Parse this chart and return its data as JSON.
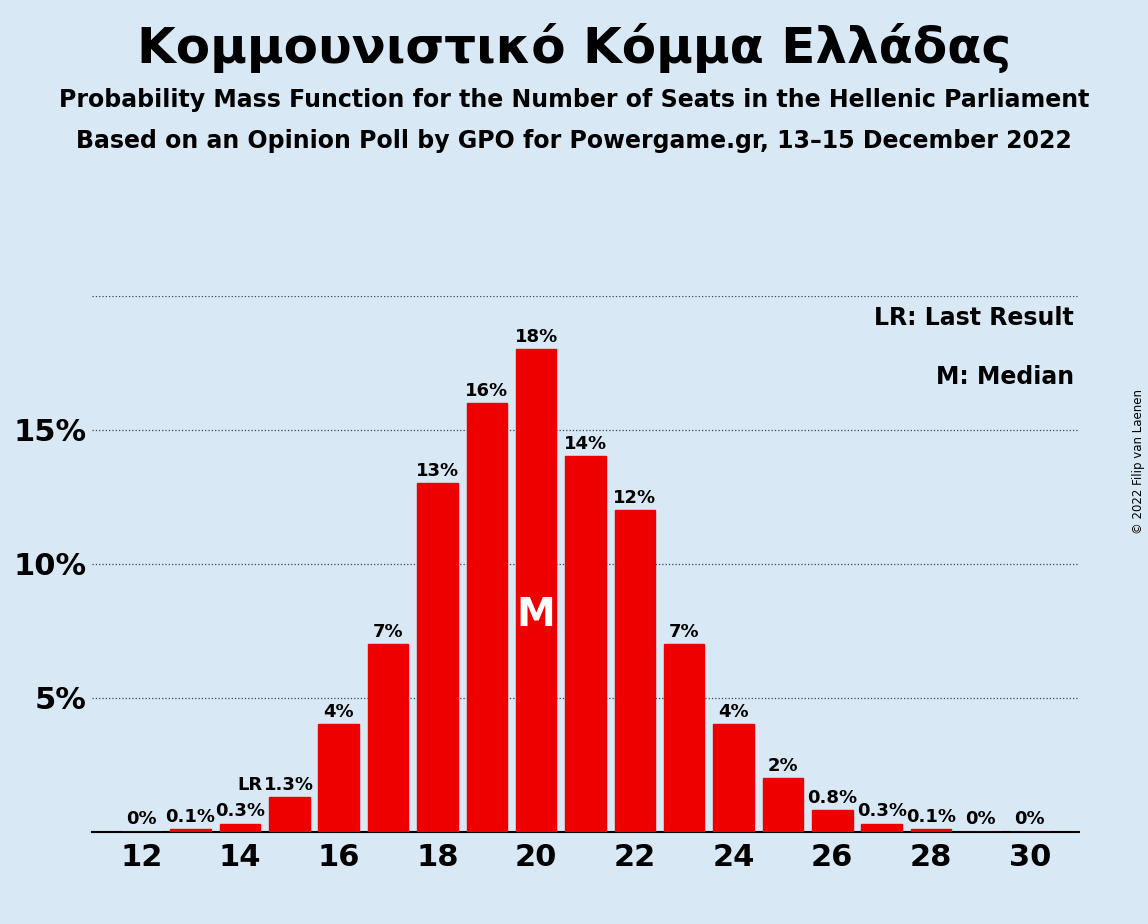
{
  "title": "Κομμουνιστικό Κόμμα Ελλάδας",
  "subtitle1": "Probability Mass Function for the Number of Seats in the Hellenic Parliament",
  "subtitle2": "Based on an Opinion Poll by GPO for Powergame.gr, 13–15 December 2022",
  "copyright": "© 2022 Filip van Laenen",
  "legend_lr": "LR: Last Result",
  "legend_m": "M: Median",
  "background_color": "#d8e8f5",
  "bar_color": "#ee0000",
  "seats": [
    12,
    13,
    14,
    15,
    16,
    17,
    18,
    19,
    20,
    21,
    22,
    23,
    24,
    25,
    26,
    27,
    28,
    29,
    30
  ],
  "probabilities": [
    0.0,
    0.001,
    0.003,
    0.013,
    0.04,
    0.07,
    0.13,
    0.16,
    0.18,
    0.14,
    0.12,
    0.07,
    0.04,
    0.02,
    0.008,
    0.003,
    0.001,
    0.0,
    0.0
  ],
  "labels": [
    "0%",
    "0.1%",
    "0.3%",
    "1.3%",
    "4%",
    "7%",
    "13%",
    "16%",
    "18%",
    "14%",
    "12%",
    "7%",
    "4%",
    "2%",
    "0.8%",
    "0.3%",
    "0.1%",
    "0%",
    "0%"
  ],
  "ylim": [
    0,
    0.2
  ],
  "yticks": [
    0.0,
    0.05,
    0.1,
    0.15,
    0.2
  ],
  "ytick_labels": [
    "",
    "5%",
    "10%",
    "15%",
    ""
  ],
  "xticks": [
    12,
    14,
    16,
    18,
    20,
    22,
    24,
    26,
    28,
    30
  ],
  "median_seat": 20,
  "lr_seat": 15,
  "title_fontsize": 36,
  "subtitle_fontsize": 17,
  "axis_fontsize": 22,
  "bar_label_fontsize": 13,
  "legend_fontsize": 17,
  "median_label_fontsize": 28
}
